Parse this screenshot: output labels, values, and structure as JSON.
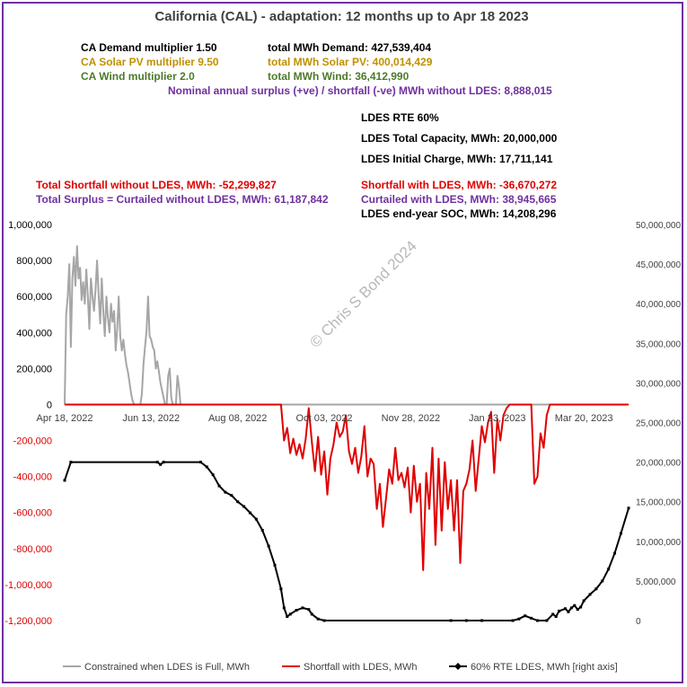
{
  "title": "California (CAL) - adaptation:  12 months up to  Apr 18 2023",
  "info": {
    "demand_mult": "CA Demand multiplier  1.50",
    "solar_mult": "CA Solar PV multiplier  9.50",
    "wind_mult": "CA Wind multiplier  2.0",
    "total_demand": "total MWh Demand:   427,539,404",
    "total_solar": "total MWh Solar PV:   400,014,429",
    "total_wind": "total MWh Wind:   36,412,990",
    "nominal": "Nominal annual surplus (+ve) / shortfall (-ve) MWh without LDES:  8,888,015",
    "rte": "LDES RTE 60%",
    "capacity": "LDES Total Capacity, MWh:  20,000,000",
    "initial": "LDES Initial Charge, MWh:  17,711,141",
    "shortfall_without": "Total Shortfall without LDES, MWh:  -52,299,827",
    "surplus_without": "Total Surplus = Curtailed without LDES, MWh:  61,187,842",
    "shortfall_with": "Shortfall with LDES, MWh:  -36,670,272",
    "curtailed_with": "Curtailed with LDES, MWh:  38,945,665",
    "end_soc": "LDES end-year SOC, MWh:  14,208,296"
  },
  "watermark": "© Chris S Bond  2024",
  "colors": {
    "frame": "#7030a0",
    "constrained": "#a6a6a6",
    "shortfall": "#e00000",
    "ldes": "#000000",
    "gold": "#c09000",
    "green": "#4d7a2a",
    "purple": "#7030a0"
  },
  "chart_data": {
    "type": "line",
    "x_tick_labels": [
      "Apr 18, 2022",
      "Jun 13, 2022",
      "Aug 08, 2022",
      "Oct 03, 2022",
      "Nov 28, 2022",
      "Jan 23, 2023",
      "Mar 20, 2023"
    ],
    "x_tick_days": [
      0,
      56,
      112,
      168,
      224,
      280,
      336
    ],
    "x_range_days": [
      0,
      365
    ],
    "left_axis": {
      "range": [
        -1200000,
        1000000
      ],
      "ticks": [
        1000000,
        800000,
        600000,
        400000,
        200000,
        0,
        -200000,
        -400000,
        -600000,
        -800000,
        -1000000,
        -1200000
      ],
      "tick_labels": [
        "1,000,000",
        "800,000",
        "600,000",
        "400,000",
        "200,000",
        "0",
        "-200,000",
        "-400,000",
        "-600,000",
        "-800,000",
        "-1,000,000",
        "-1,200,000"
      ]
    },
    "right_axis": {
      "range": [
        0,
        50000000
      ],
      "ticks": [
        50000000,
        45000000,
        40000000,
        35000000,
        30000000,
        25000000,
        20000000,
        15000000,
        10000000,
        5000000,
        0
      ],
      "tick_labels": [
        "50,000,000",
        "45,000,000",
        "40,000,000",
        "35,000,000",
        "30,000,000",
        "25,000,000",
        "20,000,000",
        "15,000,000",
        "10,000,000",
        "5,000,000",
        "0"
      ]
    },
    "legend_position": "bottom",
    "series": [
      {
        "name": "Constrained when LDES is Full, MWh",
        "axis": "left",
        "points": [
          [
            0,
            0
          ],
          [
            1,
            500000
          ],
          [
            2,
            600000
          ],
          [
            3,
            780000
          ],
          [
            4,
            320000
          ],
          [
            5,
            700000
          ],
          [
            6,
            820000
          ],
          [
            7,
            660000
          ],
          [
            8,
            880000
          ],
          [
            9,
            700000
          ],
          [
            10,
            760000
          ],
          [
            11,
            580000
          ],
          [
            12,
            680000
          ],
          [
            13,
            560000
          ],
          [
            14,
            750000
          ],
          [
            15,
            600000
          ],
          [
            16,
            420000
          ],
          [
            17,
            700000
          ],
          [
            18,
            600000
          ],
          [
            19,
            520000
          ],
          [
            20,
            640000
          ],
          [
            21,
            800000
          ],
          [
            22,
            600000
          ],
          [
            23,
            450000
          ],
          [
            24,
            700000
          ],
          [
            25,
            520000
          ],
          [
            26,
            380000
          ],
          [
            27,
            600000
          ],
          [
            28,
            480000
          ],
          [
            29,
            400000
          ],
          [
            30,
            560000
          ],
          [
            31,
            460000
          ],
          [
            32,
            520000
          ],
          [
            33,
            300000
          ],
          [
            34,
            420000
          ],
          [
            35,
            600000
          ],
          [
            36,
            380000
          ],
          [
            37,
            300000
          ],
          [
            38,
            360000
          ],
          [
            39,
            280000
          ],
          [
            40,
            220000
          ],
          [
            41,
            180000
          ],
          [
            42,
            120000
          ],
          [
            43,
            60000
          ],
          [
            44,
            20000
          ],
          [
            45,
            0
          ],
          [
            46,
            0
          ],
          [
            47,
            0
          ],
          [
            48,
            0
          ],
          [
            49,
            0
          ],
          [
            50,
            60000
          ],
          [
            51,
            220000
          ],
          [
            52,
            320000
          ],
          [
            53,
            410000
          ],
          [
            54,
            600000
          ],
          [
            55,
            380000
          ],
          [
            56,
            360000
          ],
          [
            57,
            320000
          ],
          [
            58,
            300000
          ],
          [
            59,
            200000
          ],
          [
            60,
            240000
          ],
          [
            61,
            180000
          ],
          [
            62,
            120000
          ],
          [
            63,
            80000
          ],
          [
            64,
            40000
          ],
          [
            65,
            0
          ],
          [
            66,
            0
          ],
          [
            67,
            160000
          ],
          [
            68,
            200000
          ],
          [
            69,
            40000
          ],
          [
            70,
            0
          ],
          [
            71,
            0
          ],
          [
            72,
            0
          ],
          [
            73,
            160000
          ],
          [
            74,
            100000
          ],
          [
            75,
            0
          ],
          [
            76,
            0
          ],
          [
            365,
            0
          ]
        ]
      },
      {
        "name": "Shortfall with LDES, MWh",
        "axis": "left",
        "points": [
          [
            0,
            0
          ],
          [
            140,
            0
          ],
          [
            142,
            -200000
          ],
          [
            144,
            -130000
          ],
          [
            146,
            -270000
          ],
          [
            148,
            -190000
          ],
          [
            150,
            -280000
          ],
          [
            152,
            -220000
          ],
          [
            154,
            -300000
          ],
          [
            156,
            -190000
          ],
          [
            158,
            -20000
          ],
          [
            160,
            -210000
          ],
          [
            162,
            -370000
          ],
          [
            164,
            -180000
          ],
          [
            166,
            -390000
          ],
          [
            168,
            -260000
          ],
          [
            170,
            -500000
          ],
          [
            172,
            -300000
          ],
          [
            174,
            -220000
          ],
          [
            176,
            -100000
          ],
          [
            178,
            -180000
          ],
          [
            180,
            -150000
          ],
          [
            182,
            -60000
          ],
          [
            184,
            -260000
          ],
          [
            186,
            -330000
          ],
          [
            188,
            -240000
          ],
          [
            190,
            -380000
          ],
          [
            192,
            -290000
          ],
          [
            194,
            -120000
          ],
          [
            196,
            -400000
          ],
          [
            198,
            -300000
          ],
          [
            200,
            -330000
          ],
          [
            202,
            -580000
          ],
          [
            204,
            -440000
          ],
          [
            206,
            -680000
          ],
          [
            208,
            -520000
          ],
          [
            210,
            -360000
          ],
          [
            212,
            -440000
          ],
          [
            214,
            -240000
          ],
          [
            216,
            -420000
          ],
          [
            218,
            -380000
          ],
          [
            220,
            -460000
          ],
          [
            222,
            -350000
          ],
          [
            224,
            -600000
          ],
          [
            226,
            -340000
          ],
          [
            228,
            -540000
          ],
          [
            230,
            -440000
          ],
          [
            232,
            -920000
          ],
          [
            234,
            -380000
          ],
          [
            236,
            -580000
          ],
          [
            238,
            -240000
          ],
          [
            240,
            -780000
          ],
          [
            242,
            -300000
          ],
          [
            244,
            -700000
          ],
          [
            246,
            -320000
          ],
          [
            248,
            -580000
          ],
          [
            250,
            -420000
          ],
          [
            252,
            -700000
          ],
          [
            254,
            -420000
          ],
          [
            256,
            -880000
          ],
          [
            258,
            -480000
          ],
          [
            260,
            -440000
          ],
          [
            262,
            -360000
          ],
          [
            264,
            -200000
          ],
          [
            266,
            -480000
          ],
          [
            268,
            -300000
          ],
          [
            270,
            -120000
          ],
          [
            272,
            -210000
          ],
          [
            274,
            -100000
          ],
          [
            276,
            -40000
          ],
          [
            278,
            -380000
          ],
          [
            280,
            -80000
          ],
          [
            282,
            -200000
          ],
          [
            284,
            -60000
          ],
          [
            286,
            -20000
          ],
          [
            288,
            0
          ],
          [
            302,
            0
          ],
          [
            304,
            -440000
          ],
          [
            306,
            -400000
          ],
          [
            308,
            -160000
          ],
          [
            310,
            -240000
          ],
          [
            312,
            -60000
          ],
          [
            314,
            0
          ],
          [
            365,
            0
          ]
        ]
      },
      {
        "name": "60%  RTE LDES, MWh [right axis]",
        "axis": "right",
        "points": [
          [
            0,
            17700000
          ],
          [
            4,
            20000000
          ],
          [
            60,
            20000000
          ],
          [
            62,
            19700000
          ],
          [
            64,
            20000000
          ],
          [
            88,
            20000000
          ],
          [
            92,
            19400000
          ],
          [
            96,
            18400000
          ],
          [
            100,
            17000000
          ],
          [
            104,
            16200000
          ],
          [
            108,
            15800000
          ],
          [
            112,
            15000000
          ],
          [
            116,
            14400000
          ],
          [
            120,
            13600000
          ],
          [
            124,
            12800000
          ],
          [
            128,
            11400000
          ],
          [
            132,
            9400000
          ],
          [
            136,
            7000000
          ],
          [
            140,
            4000000
          ],
          [
            142,
            1600000
          ],
          [
            144,
            500000
          ],
          [
            146,
            800000
          ],
          [
            150,
            1300000
          ],
          [
            154,
            1600000
          ],
          [
            158,
            1400000
          ],
          [
            160,
            800000
          ],
          [
            164,
            200000
          ],
          [
            168,
            0
          ],
          [
            250,
            0
          ],
          [
            260,
            0
          ],
          [
            270,
            0
          ],
          [
            290,
            0
          ],
          [
            294,
            200000
          ],
          [
            298,
            600000
          ],
          [
            302,
            300000
          ],
          [
            306,
            0
          ],
          [
            312,
            0
          ],
          [
            316,
            800000
          ],
          [
            318,
            500000
          ],
          [
            320,
            1200000
          ],
          [
            324,
            1500000
          ],
          [
            326,
            1100000
          ],
          [
            328,
            1600000
          ],
          [
            330,
            1900000
          ],
          [
            332,
            1400000
          ],
          [
            334,
            1700000
          ],
          [
            336,
            2500000
          ],
          [
            340,
            3300000
          ],
          [
            344,
            4000000
          ],
          [
            348,
            5000000
          ],
          [
            352,
            6500000
          ],
          [
            356,
            8500000
          ],
          [
            360,
            11000000
          ],
          [
            365,
            14200000
          ]
        ]
      }
    ]
  }
}
